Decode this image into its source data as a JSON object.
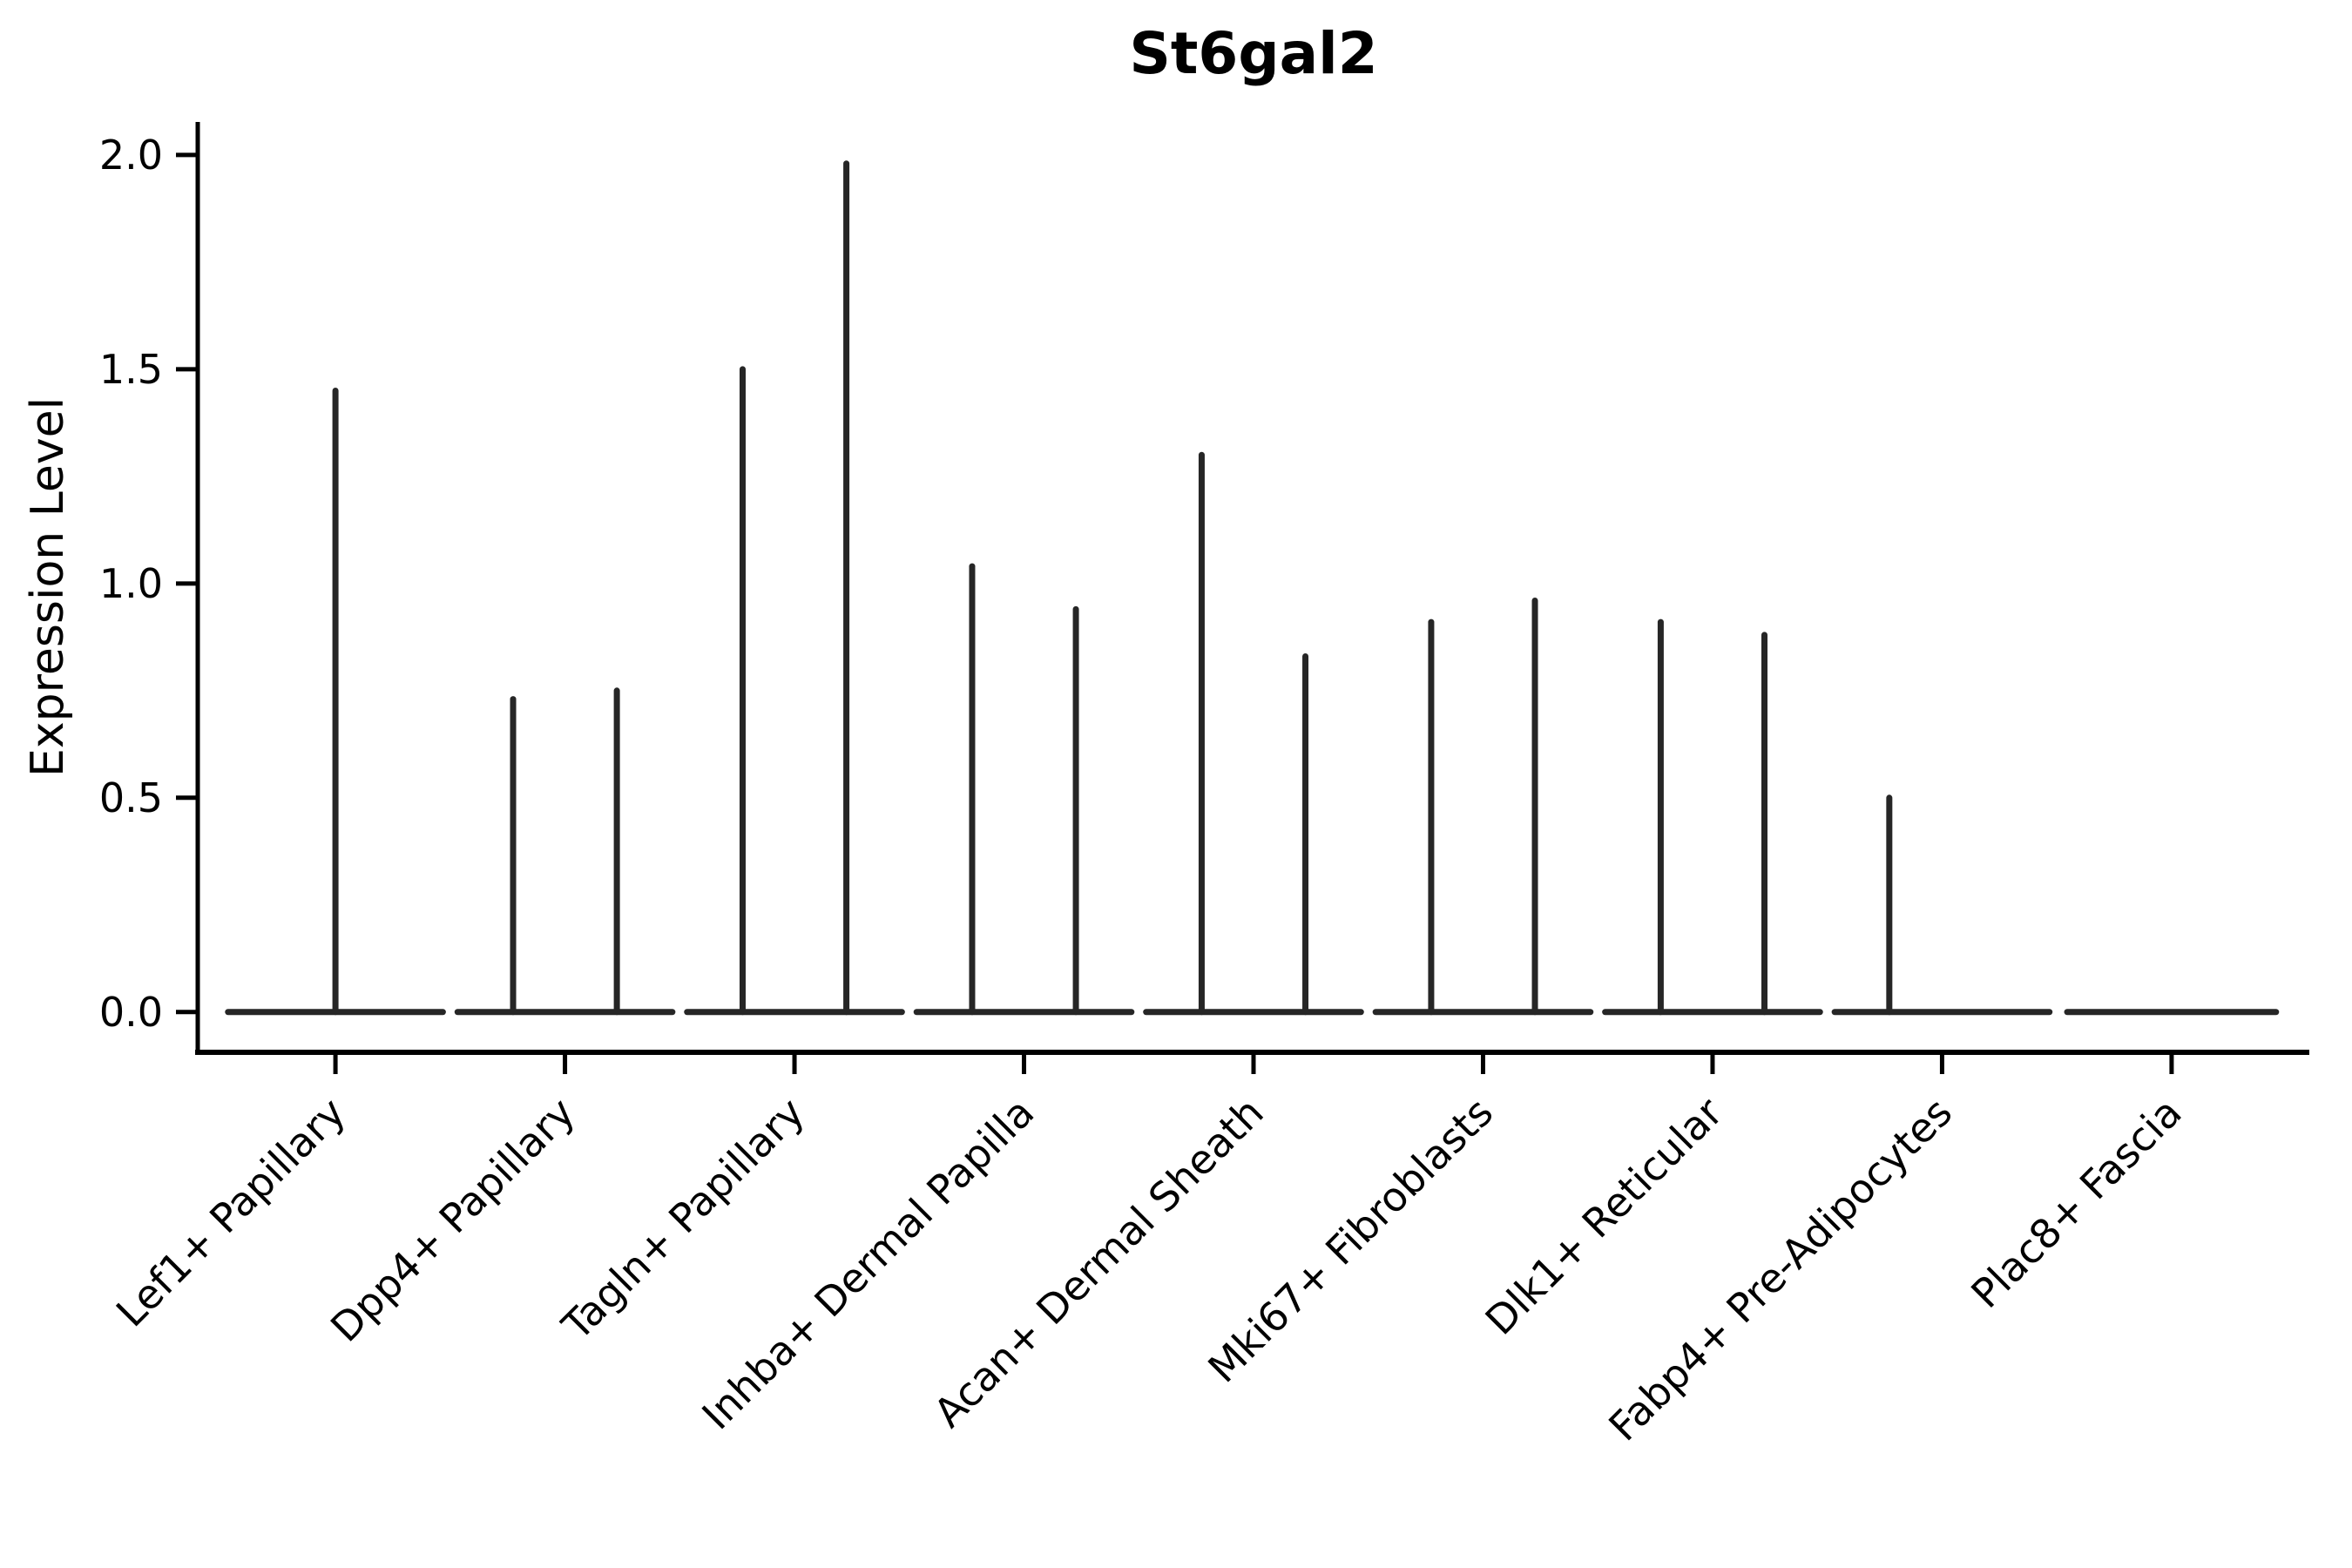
{
  "chart_data": {
    "type": "violin",
    "title": "St6gal2",
    "ylabel": "Expression Level",
    "xlabel": "",
    "grid": false,
    "legend": "none",
    "background": "#ffffff",
    "colors": {
      "violin_stroke": "#262626",
      "axis": "#000000",
      "text": "#000000"
    },
    "ylim": [
      -0.094,
      2.077
    ],
    "xlim_slots": [
      -0.6,
      8.6
    ],
    "y_ticks": [
      0.0,
      0.5,
      1.0,
      1.5,
      2.0
    ],
    "y_tick_labels": [
      "0.0",
      "0.5",
      "1.0",
      "1.5",
      "2.0"
    ],
    "categories": [
      "Lef1+ Papillary",
      "Dpp4+ Papillary",
      "Tagln+ Papillary",
      "Inhba+ Dermal Papilla",
      "Acan+ Dermal Sheath",
      "Mki67+ Fibroblasts",
      "Dlk1+ Reticular",
      "Fabp4+ Pre-Adipocytes",
      "Plac8+ Fascia"
    ],
    "violins": [
      {
        "category": "Lef1+ Papillary",
        "baseline_value": 0.0,
        "baseline_halfwidth": 0.468,
        "spikes": [
          {
            "offset": 0.0,
            "peak": 1.45
          }
        ]
      },
      {
        "category": "Dpp4+ Papillary",
        "baseline_value": 0.0,
        "baseline_halfwidth": 0.468,
        "spikes": [
          {
            "offset": -0.226,
            "peak": 0.73
          },
          {
            "offset": 0.226,
            "peak": 0.75
          }
        ]
      },
      {
        "category": "Tagln+ Papillary",
        "baseline_value": 0.0,
        "baseline_halfwidth": 0.468,
        "spikes": [
          {
            "offset": -0.226,
            "peak": 1.5
          },
          {
            "offset": 0.226,
            "peak": 1.98
          }
        ]
      },
      {
        "category": "Inhba+ Dermal Papilla",
        "baseline_value": 0.0,
        "baseline_halfwidth": 0.468,
        "spikes": [
          {
            "offset": -0.226,
            "peak": 1.04
          },
          {
            "offset": 0.226,
            "peak": 0.94
          }
        ]
      },
      {
        "category": "Acan+ Dermal Sheath",
        "baseline_value": 0.0,
        "baseline_halfwidth": 0.468,
        "spikes": [
          {
            "offset": -0.226,
            "peak": 1.3
          },
          {
            "offset": 0.226,
            "peak": 0.83
          }
        ]
      },
      {
        "category": "Mki67+ Fibroblasts",
        "baseline_value": 0.0,
        "baseline_halfwidth": 0.468,
        "spikes": [
          {
            "offset": -0.226,
            "peak": 0.91
          },
          {
            "offset": 0.226,
            "peak": 0.96
          }
        ]
      },
      {
        "category": "Dlk1+ Reticular",
        "baseline_value": 0.0,
        "baseline_halfwidth": 0.468,
        "spikes": [
          {
            "offset": -0.226,
            "peak": 0.91
          },
          {
            "offset": 0.226,
            "peak": 0.88
          }
        ]
      },
      {
        "category": "Fabp4+ Pre-Adipocytes",
        "baseline_value": 0.0,
        "baseline_halfwidth": 0.468,
        "spikes": [
          {
            "offset": -0.23,
            "peak": 0.5
          }
        ]
      },
      {
        "category": "Plac8+ Fascia",
        "baseline_value": 0.0,
        "baseline_halfwidth": 0.455,
        "spikes": []
      }
    ]
  }
}
